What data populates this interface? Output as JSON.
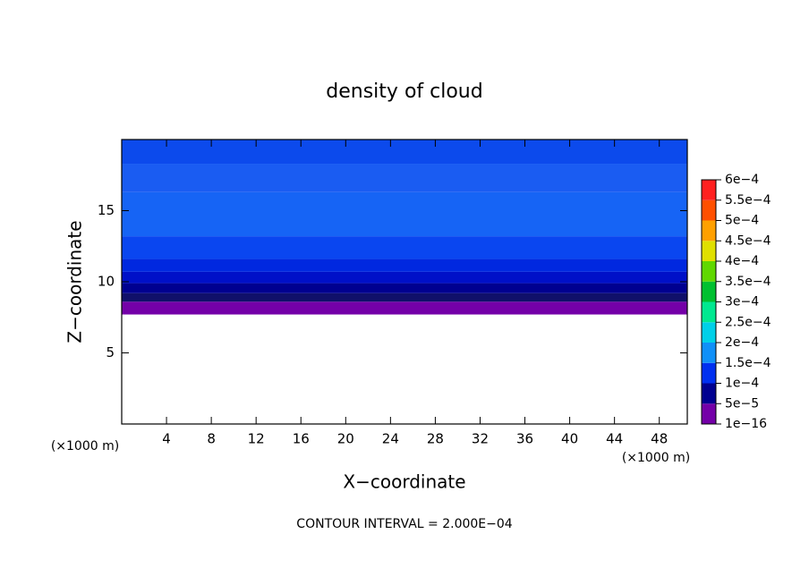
{
  "chart_data": {
    "type": "contour",
    "title": "density of cloud",
    "xlabel": "X−coordinate",
    "ylabel": "Z−coordinate",
    "x_unit_left": "(×1000 m)",
    "x_unit_right": "(×1000 m)",
    "footnote": "CONTOUR INTERVAL = 2.000E−04",
    "xlim": [
      0,
      50.5
    ],
    "xticks": [
      4,
      8,
      12,
      16,
      20,
      24,
      28,
      32,
      36,
      40,
      44,
      48
    ],
    "ylim": [
      0,
      20
    ],
    "yticks": [
      5,
      10,
      15
    ],
    "bands": [
      {
        "z": [
          7.7,
          8.6
        ],
        "color": "#7400a8"
      },
      {
        "z": [
          8.6,
          9.2
        ],
        "color": "#10106a"
      },
      {
        "z": [
          9.2,
          9.9
        ],
        "color": "#000090"
      },
      {
        "z": [
          9.9,
          10.7
        ],
        "color": "#0010c8"
      },
      {
        "z": [
          10.7,
          11.6
        ],
        "color": "#0028e0"
      },
      {
        "z": [
          11.6,
          13.2
        ],
        "color": "#0a46f0"
      },
      {
        "z": [
          13.2,
          16.3
        ],
        "color": "#1664f5"
      },
      {
        "z": [
          16.3,
          18.3
        ],
        "color": "#1a5cf2"
      },
      {
        "z": [
          18.3,
          20
        ],
        "color": "#0c4aec"
      }
    ],
    "colorbar": {
      "ticks": [
        {
          "value": 1e-16,
          "label": "1e−16"
        },
        {
          "value": 5e-05,
          "label": "5e−5"
        },
        {
          "value": 0.0001,
          "label": "1e−4"
        },
        {
          "value": 0.00015,
          "label": "1.5e−4"
        },
        {
          "value": 0.0002,
          "label": "2e−4"
        },
        {
          "value": 0.00025,
          "label": "2.5e−4"
        },
        {
          "value": 0.0003,
          "label": "3e−4"
        },
        {
          "value": 0.00035,
          "label": "3.5e−4"
        },
        {
          "value": 0.0004,
          "label": "4e−4"
        },
        {
          "value": 0.00045,
          "label": "4.5e−4"
        },
        {
          "value": 0.0005,
          "label": "5e−4"
        },
        {
          "value": 0.00055,
          "label": "5.5e−4"
        },
        {
          "value": 0.0006,
          "label": "6e−4"
        }
      ],
      "colors": [
        "#7400a8",
        "#000090",
        "#0030f0",
        "#1090f8",
        "#00d0e8",
        "#00e890",
        "#00c030",
        "#60d800",
        "#e0e000",
        "#ffa000",
        "#ff5000",
        "#ff2020"
      ]
    }
  }
}
